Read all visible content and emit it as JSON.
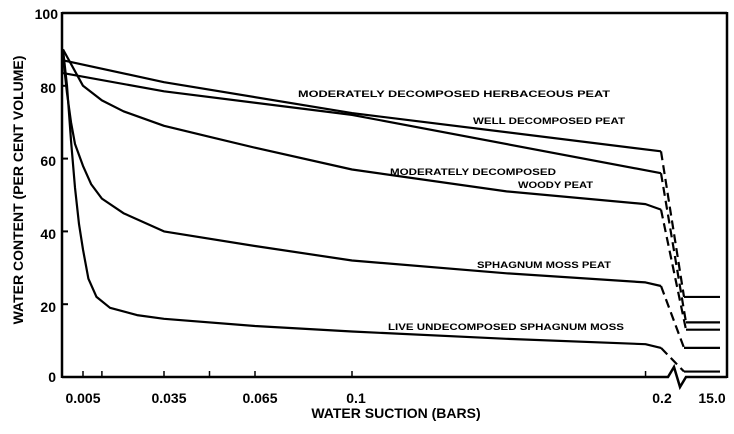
{
  "chart_data": {
    "type": "line",
    "title": "",
    "xlabel": "WATER SUCTION (BARS)",
    "ylabel": "WATER CONTENT (PER CENT VOLUME)",
    "ylim": [
      0,
      100
    ],
    "x_ticks": [
      "0.005",
      "0.035",
      "0.065",
      "0.1",
      "0.2",
      "15.0"
    ],
    "x_tick_values": [
      0.005,
      0.035,
      0.065,
      0.1,
      0.2,
      15.0
    ],
    "y_ticks": [
      "0",
      "20",
      "40",
      "60",
      "80",
      "100"
    ],
    "y_tick_values": [
      0,
      20,
      40,
      60,
      80,
      100
    ],
    "x_axis_note": "non-linear axis with a break between 0.2 and 15.0; segment to 15.0 dashed",
    "grid": false,
    "series": [
      {
        "name": "MODERATELY DECOMPOSED HERBACEOUS PEAT",
        "points": [
          [
            0,
            87
          ],
          [
            0.035,
            81
          ],
          [
            0.1,
            72.5
          ],
          [
            0.2,
            62
          ]
        ],
        "value_at_15": 22
      },
      {
        "name": "WELL DECOMPOSED PEAT",
        "points": [
          [
            0,
            83.5
          ],
          [
            0.035,
            78.5
          ],
          [
            0.1,
            72
          ],
          [
            0.2,
            56
          ]
        ],
        "value_at_15": 15
      },
      {
        "name": "MODERATELY DECOMPOSED WOODY PEAT",
        "points": [
          [
            0,
            90
          ],
          [
            0.005,
            80
          ],
          [
            0.012,
            76
          ],
          [
            0.02,
            73
          ],
          [
            0.035,
            69
          ],
          [
            0.05,
            66
          ],
          [
            0.065,
            63
          ],
          [
            0.1,
            57
          ],
          [
            0.15,
            51
          ],
          [
            0.195,
            47.5
          ],
          [
            0.2,
            46
          ]
        ],
        "value_at_15": 13
      },
      {
        "name": "SPHAGNUM MOSS PEAT",
        "points": [
          [
            0,
            88
          ],
          [
            0.001,
            78
          ],
          [
            0.002,
            70
          ],
          [
            0.003,
            64
          ],
          [
            0.005,
            58
          ],
          [
            0.008,
            53
          ],
          [
            0.012,
            49
          ],
          [
            0.02,
            45
          ],
          [
            0.035,
            40
          ],
          [
            0.065,
            36
          ],
          [
            0.1,
            32
          ],
          [
            0.15,
            28.5
          ],
          [
            0.195,
            26
          ],
          [
            0.2,
            25
          ]
        ],
        "value_at_15": 8
      },
      {
        "name": "LIVE UNDECOMPOSED SPHAGNUM MOSS",
        "points": [
          [
            0,
            90
          ],
          [
            0.001,
            80
          ],
          [
            0.002,
            65
          ],
          [
            0.003,
            52
          ],
          [
            0.004,
            42
          ],
          [
            0.005,
            35
          ],
          [
            0.007,
            27
          ],
          [
            0.01,
            22
          ],
          [
            0.015,
            19
          ],
          [
            0.025,
            17
          ],
          [
            0.035,
            16
          ],
          [
            0.065,
            14
          ],
          [
            0.1,
            12.5
          ],
          [
            0.15,
            10.5
          ],
          [
            0.195,
            9
          ],
          [
            0.2,
            8
          ]
        ],
        "value_at_15": 1.5
      }
    ],
    "annotations": {
      "herbaceous": "MODERATELY DECOMPOSED HERBACEOUS PEAT",
      "well": "WELL DECOMPOSED PEAT",
      "woody_1": "MODERATELY DECOMPOSED",
      "woody_2": "WOODY PEAT",
      "sphagnum_peat": "SPHAGNUM MOSS PEAT",
      "live_moss": "LIVE UNDECOMPOSED SPHAGNUM MOSS"
    }
  }
}
